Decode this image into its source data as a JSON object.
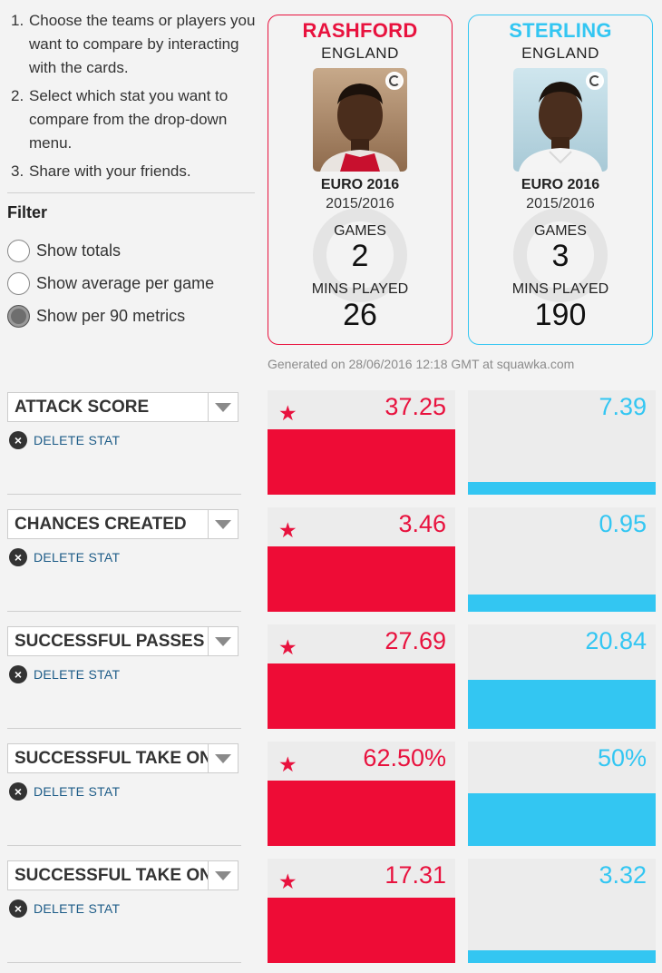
{
  "instructions": [
    {
      "num": "1.",
      "text": "Choose the teams or players you want to compare by interacting with the cards."
    },
    {
      "num": "2.",
      "text": "Select which stat you want to compare from the drop-down menu."
    },
    {
      "num": "3.",
      "text": "Share with your friends."
    }
  ],
  "filter": {
    "title": "Filter",
    "options": [
      {
        "label": "Show totals",
        "checked": false
      },
      {
        "label": "Show average per game",
        "checked": false
      },
      {
        "label": "Show per 90 metrics",
        "checked": true
      }
    ]
  },
  "players": [
    {
      "name": "RASHFORD",
      "country": "ENGLAND",
      "competition": "EURO 2016",
      "season": "2015/2016",
      "games_label": "GAMES",
      "games": "2",
      "mins_label": "MINS PLAYED",
      "mins": "26",
      "color": "#e8123e"
    },
    {
      "name": "STERLING",
      "country": "ENGLAND",
      "competition": "EURO 2016",
      "season": "2015/2016",
      "games_label": "GAMES",
      "games": "3",
      "mins_label": "MINS PLAYED",
      "mins": "190",
      "color": "#33c6f2"
    }
  ],
  "generated": "Generated on 28/06/2016 12:18 GMT at squawka.com",
  "delete_label": "DELETE STAT",
  "stats": [
    {
      "name": "ATTACK SCORE",
      "left": "37.25",
      "right": "7.39",
      "left_share": 1.0,
      "right_share": 0.2,
      "winner": "left"
    },
    {
      "name": "CHANCES CREATED",
      "left": "3.46",
      "right": "0.95",
      "left_share": 1.0,
      "right_share": 0.27,
      "winner": "left"
    },
    {
      "name": "SUCCESSFUL PASSES",
      "left": "27.69",
      "right": "20.84",
      "left_share": 1.0,
      "right_share": 0.75,
      "winner": "left"
    },
    {
      "name": "SUCCESSFUL TAKE ONS",
      "left": "62.50%",
      "right": "50%",
      "left_share": 1.0,
      "right_share": 0.8,
      "winner": "left"
    },
    {
      "name": "SUCCESSFUL TAKE ONS",
      "left": "17.31",
      "right": "3.32",
      "left_share": 1.0,
      "right_share": 0.19,
      "winner": "left"
    }
  ]
}
